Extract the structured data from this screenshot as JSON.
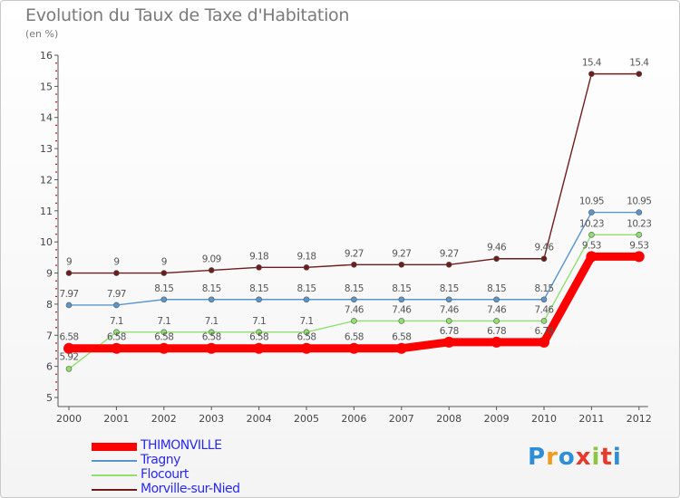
{
  "title": "Evolution du Taux de Taxe d'Habitation",
  "unit": "(en %)",
  "colors": {
    "THIMONVILLE": "#ff0000",
    "Tragny": "#5a96cc",
    "Flocourt": "#90e070",
    "Morville-sur-Nied": "#6e1c1c",
    "axis": "#555555",
    "grid_dot": "#d01010"
  },
  "logo": {
    "letters": [
      "P",
      "r",
      "o",
      "x",
      "i",
      "t",
      "i"
    ],
    "colors": [
      "#2f8fd6",
      "#f29a1c",
      "#2f8fd6",
      "#e83a2c",
      "#8cc63e",
      "#e83a2c",
      "#2f8fd6"
    ]
  },
  "chart_data": {
    "type": "line",
    "title": "Evolution du Taux de Taxe d'Habitation",
    "ylabel": "(en %)",
    "xlabel": "",
    "x": [
      "2000",
      "2001",
      "2002",
      "2003",
      "2004",
      "2005",
      "2006",
      "2007",
      "2008",
      "2009",
      "2010",
      "2011",
      "2012"
    ],
    "ylim": [
      5,
      16
    ],
    "yticks": [
      5,
      6,
      7,
      8,
      9,
      10,
      11,
      12,
      13,
      14,
      15,
      16
    ],
    "legend_position": "bottom-left",
    "series": [
      {
        "name": "THIMONVILLE",
        "values": [
          6.58,
          6.58,
          6.58,
          6.58,
          6.58,
          6.58,
          6.58,
          6.58,
          6.78,
          6.78,
          6.78,
          9.53,
          9.53
        ],
        "labels": [
          "6.58",
          "6.58",
          "6.58",
          "6.58",
          "6.58",
          "6.58",
          "6.58",
          "6.58",
          "6.78",
          "6.78",
          "6.78",
          "9.53",
          "9.53"
        ]
      },
      {
        "name": "Tragny",
        "values": [
          7.97,
          7.97,
          8.15,
          8.15,
          8.15,
          8.15,
          8.15,
          8.15,
          8.15,
          8.15,
          8.15,
          10.95,
          10.95
        ],
        "labels": [
          "7.97",
          "7.97",
          "8.15",
          "8.15",
          "8.15",
          "8.15",
          "8.15",
          "8.15",
          "8.15",
          "8.15",
          "8.15",
          "10.95",
          "10.95"
        ]
      },
      {
        "name": "Flocourt",
        "values": [
          5.92,
          7.1,
          7.1,
          7.1,
          7.1,
          7.1,
          7.46,
          7.46,
          7.46,
          7.46,
          7.46,
          10.23,
          10.23
        ],
        "labels": [
          "5.92",
          "7.1",
          "7.1",
          "7.1",
          "7.1",
          "7.1",
          "7.46",
          "7.46",
          "7.46",
          "7.46",
          "7.46",
          "10.23",
          "10.23"
        ]
      },
      {
        "name": "Morville-sur-Nied",
        "values": [
          9,
          9,
          9,
          9.09,
          9.18,
          9.18,
          9.27,
          9.27,
          9.27,
          9.46,
          9.46,
          15.4,
          15.4
        ],
        "labels": [
          "9",
          "9",
          "9",
          "9.09",
          "9.18",
          "9.18",
          "9.27",
          "9.27",
          "9.27",
          "9.46",
          "9.46",
          "15.4",
          "15.4"
        ]
      }
    ]
  }
}
